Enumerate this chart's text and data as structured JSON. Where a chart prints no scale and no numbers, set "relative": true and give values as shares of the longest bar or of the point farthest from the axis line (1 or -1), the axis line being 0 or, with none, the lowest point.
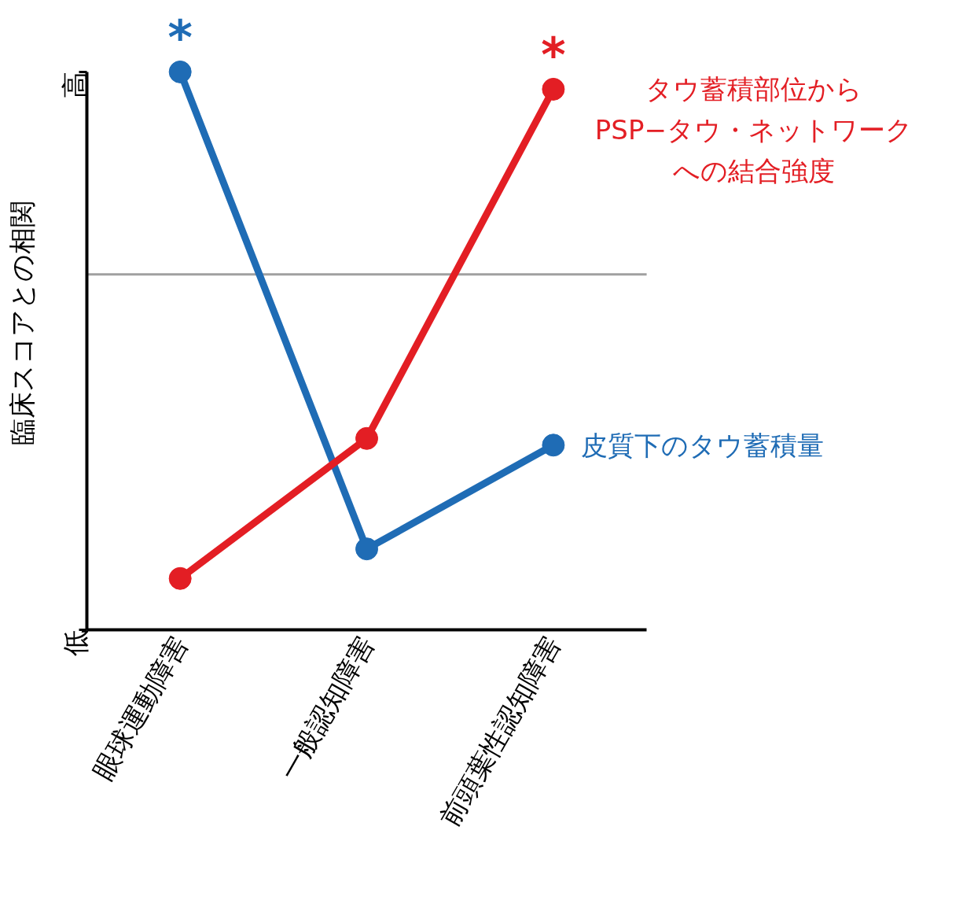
{
  "chart_data": {
    "type": "line",
    "ylabel": "臨床スコアとの相関",
    "relative": true,
    "categories": [
      "眼球運動障害",
      "一般認知障害",
      "前頭葉性認知障害"
    ],
    "series": [
      {
        "name": "皮質下のタウ蓄積量",
        "color": "#1f6cb5",
        "values": [
          1.0,
          0.145,
          0.331
        ]
      },
      {
        "name": "タウ蓄積部位からPSP−タウ・ネットワークへの結合強度",
        "color": "#e31e24",
        "values": [
          0.092,
          0.343,
          0.969
        ]
      }
    ],
    "ref_lines": [
      {
        "axis": "y",
        "value": 0.637,
        "color": "#a0a0a0"
      }
    ],
    "annotations": [
      {
        "text": "*",
        "x": "眼球運動障害",
        "y": 1.0
      },
      {
        "text": "*",
        "x": "前頭葉性認知障害",
        "y": 0.969
      },
      "高",
      "低"
    ],
    "marker": "circle",
    "line_style": "solid",
    "grid": false
  }
}
